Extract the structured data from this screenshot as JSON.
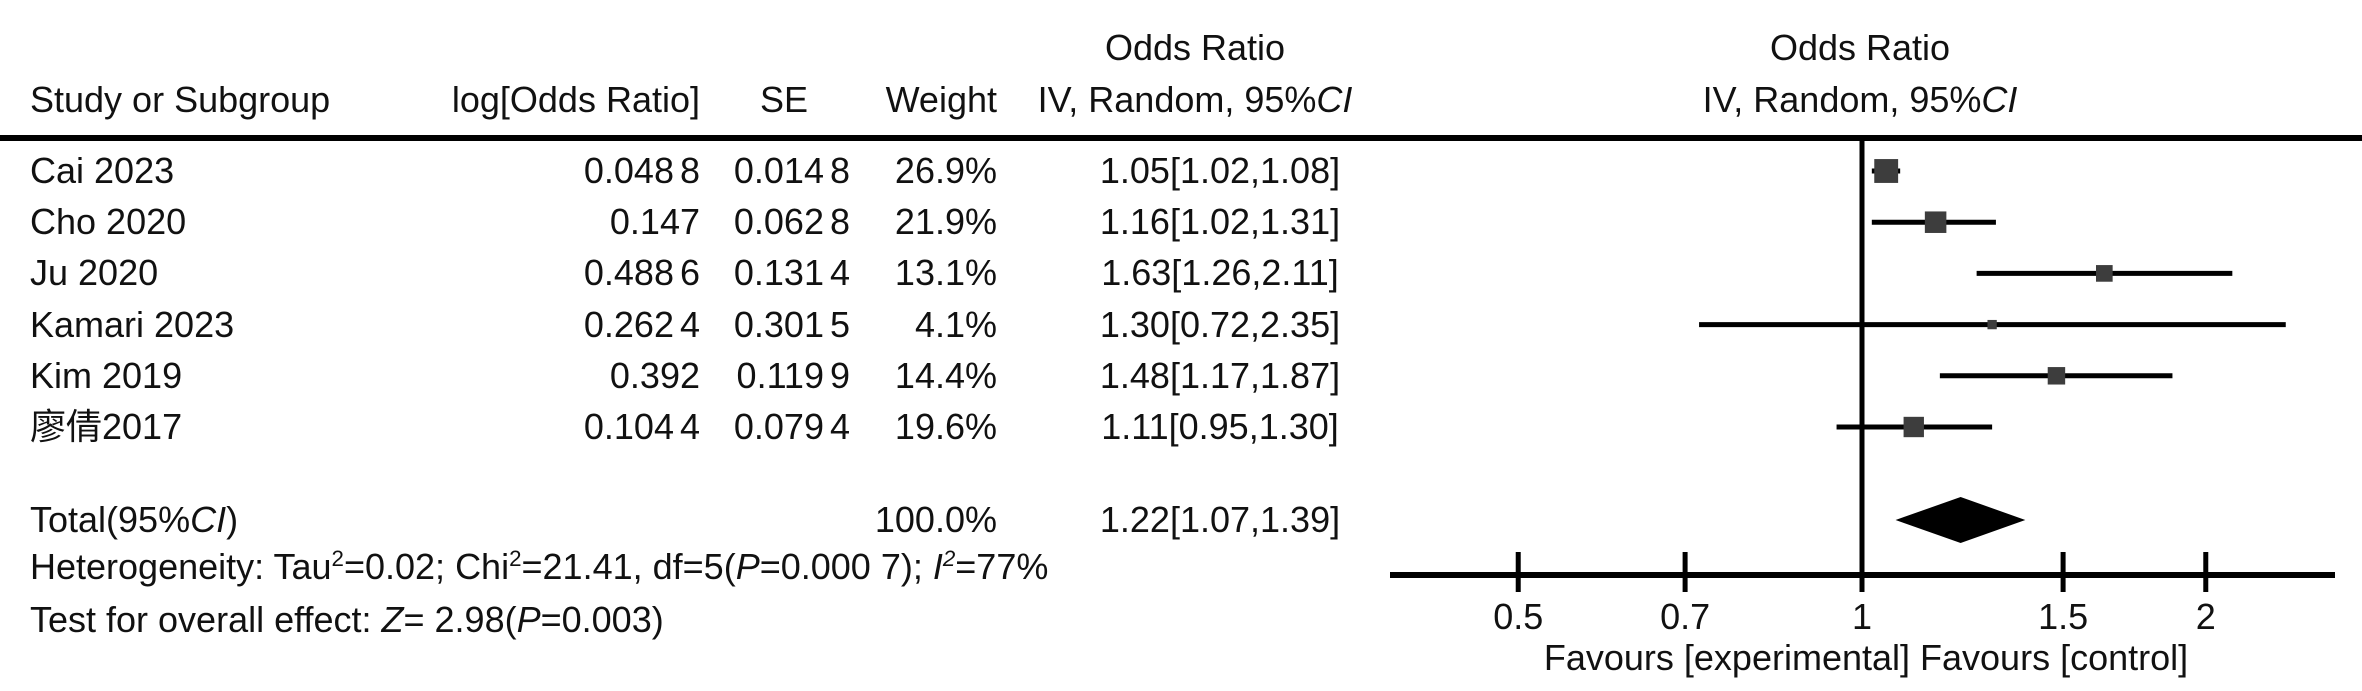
{
  "table": {
    "headers": {
      "study": "Study or Subgroup",
      "log_or": "log[Odds Ratio]",
      "se": "SE",
      "weight": "Weight",
      "or_col_line1": "Odds Ratio",
      "or_col_line2_segments": [
        [
          "IV, Random, 95%",
          ""
        ],
        [
          "CI",
          "i"
        ]
      ],
      "plot_col_line1": "Odds Ratio",
      "plot_col_line2_segments": [
        [
          "IV, Random, 95%",
          ""
        ],
        [
          "CI",
          "i"
        ]
      ]
    },
    "rows": [
      {
        "study": "Cai 2023",
        "log_or": "0.048 8",
        "se": "0.014 8",
        "weight": "26.9%",
        "ci": "1.05[1.02,1.08]"
      },
      {
        "study": "Cho 2020",
        "log_or": "0.147",
        "se": "0.062 8",
        "weight": "21.9%",
        "ci": "1.16[1.02,1.31]"
      },
      {
        "study": "Ju 2020",
        "log_or": "0.488 6",
        "se": "0.131 4",
        "weight": "13.1%",
        "ci": "1.63[1.26,2.11]"
      },
      {
        "study": "Kamari 2023",
        "log_or": "0.262 4",
        "se": "0.301 5",
        "weight": "4.1%",
        "ci": "1.30[0.72,2.35]"
      },
      {
        "study": "Kim 2019",
        "log_or": "0.392",
        "se": "0.119 9",
        "weight": "14.4%",
        "ci": "1.48[1.17,1.87]"
      },
      {
        "study": "廖倩2017",
        "log_or": "0.104 4",
        "se": "0.079 4",
        "weight": "19.6%",
        "ci": "1.11[0.95,1.30]"
      }
    ],
    "total": {
      "label_segments": [
        [
          "Total(95%",
          ""
        ],
        [
          "CI",
          "i"
        ],
        [
          ")",
          ""
        ]
      ],
      "weight": "100.0%",
      "ci": "1.22[1.07,1.39]"
    },
    "heterogeneity_segments": [
      [
        "Heterogeneity: Tau",
        ""
      ],
      [
        "2",
        "sup"
      ],
      [
        "=0.02; Chi",
        ""
      ],
      [
        "2",
        "sup"
      ],
      [
        "=21.41, df=5(",
        ""
      ],
      [
        "P",
        "i"
      ],
      [
        "=0.000 7); ",
        ""
      ],
      [
        "I",
        "i"
      ],
      [
        "2",
        "i-sup"
      ],
      [
        "=77%",
        ""
      ]
    ],
    "overall_effect_segments": [
      [
        "Test for overall effect: ",
        ""
      ],
      [
        "Z",
        "i"
      ],
      [
        "= 2.98(",
        ""
      ],
      [
        "P",
        "i"
      ],
      [
        "=0.003)",
        ""
      ]
    ]
  },
  "chart_data": {
    "type": "forest",
    "x_scale": "log",
    "x_ticks": [
      0.5,
      0.7,
      1,
      1.5,
      2
    ],
    "x_tick_labels": [
      "0.5",
      "0.7",
      "1",
      "1.5",
      "2"
    ],
    "x_axis_range": [
      0.39,
      2.6
    ],
    "null_line_value": 1,
    "xlabel": "Favours [experimental] Favours [control]",
    "effect_measure": "Odds Ratio",
    "model": "IV, Random, 95% CI",
    "studies": [
      {
        "name": "Cai 2023",
        "or": 1.05,
        "ci_low": 1.02,
        "ci_high": 1.08,
        "weight_pct": 26.9
      },
      {
        "name": "Cho 2020",
        "or": 1.16,
        "ci_low": 1.02,
        "ci_high": 1.31,
        "weight_pct": 21.9
      },
      {
        "name": "Ju 2020",
        "or": 1.63,
        "ci_low": 1.26,
        "ci_high": 2.11,
        "weight_pct": 13.1
      },
      {
        "name": "Kamari 2023",
        "or": 1.3,
        "ci_low": 0.72,
        "ci_high": 2.35,
        "weight_pct": 4.1
      },
      {
        "name": "Kim 2019",
        "or": 1.48,
        "ci_low": 1.17,
        "ci_high": 1.87,
        "weight_pct": 14.4
      },
      {
        "name": "廖倩2017",
        "or": 1.11,
        "ci_low": 0.95,
        "ci_high": 1.3,
        "weight_pct": 19.6
      }
    ],
    "total": {
      "or": 1.22,
      "ci_low": 1.07,
      "ci_high": 1.39,
      "weight_pct": 100.0,
      "heterogeneity": {
        "tau2": 0.02,
        "chi2": 21.41,
        "df": 5,
        "p": "0.000 7",
        "i2_pct": 77
      },
      "overall_effect": {
        "z": 2.98,
        "p": 0.003
      }
    }
  },
  "colors": {
    "marker_fill": "#3d3d3d",
    "line": "#000000",
    "diamond": "#000000",
    "text": "#111111",
    "background": "#ffffff"
  }
}
